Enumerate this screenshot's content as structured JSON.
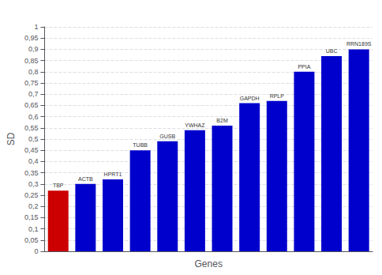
{
  "chart_data": {
    "type": "bar",
    "categories": [
      "TBP",
      "ACTB",
      "HPRT1",
      "TUBB",
      "GUSB",
      "YWHAZ",
      "B2M",
      "GAPDH",
      "RPLP",
      "PPIA",
      "UBC",
      "RRN189S"
    ],
    "values": [
      0.27,
      0.3,
      0.32,
      0.45,
      0.49,
      0.54,
      0.56,
      0.66,
      0.67,
      0.8,
      0.87,
      0.9
    ],
    "colors": [
      "#cc0000",
      "#0000cc",
      "#0000cc",
      "#0000cc",
      "#0000cc",
      "#0000cc",
      "#0000cc",
      "#0000cc",
      "#0000cc",
      "#0000cc",
      "#0000cc",
      "#0000cc"
    ],
    "xlabel": "Genes",
    "ylabel": "SD",
    "ylim": [
      0,
      1.0
    ],
    "yticks": [
      0,
      {
        "value": 0.05,
        "label": "0,05"
      },
      {
        "value": 0.1,
        "label": "0,1"
      },
      {
        "value": 0.15,
        "label": "0,15"
      },
      {
        "value": 0.2,
        "label": "0,2"
      },
      {
        "value": 0.25,
        "label": "0,25"
      },
      {
        "value": 0.3,
        "label": "0,3"
      },
      {
        "value": 0.35,
        "label": "0,35"
      },
      {
        "value": 0.4,
        "label": "0,4"
      },
      {
        "value": 0.45,
        "label": "0,45"
      },
      {
        "value": 0.5,
        "label": "0,5"
      },
      {
        "value": 0.55,
        "label": "0,55"
      },
      {
        "value": 0.6,
        "label": "0,6"
      },
      {
        "value": 0.65,
        "label": "0,65"
      },
      {
        "value": 0.7,
        "label": "0,7"
      },
      {
        "value": 0.75,
        "label": "0,75"
      },
      {
        "value": 0.8,
        "label": "0,8"
      },
      {
        "value": 0.85,
        "label": "0,85"
      },
      {
        "value": 0.9,
        "label": "0,9"
      },
      {
        "value": 0.95,
        "label": "0,95"
      },
      1
    ],
    "grid": true,
    "tick_labels": "y"
  }
}
